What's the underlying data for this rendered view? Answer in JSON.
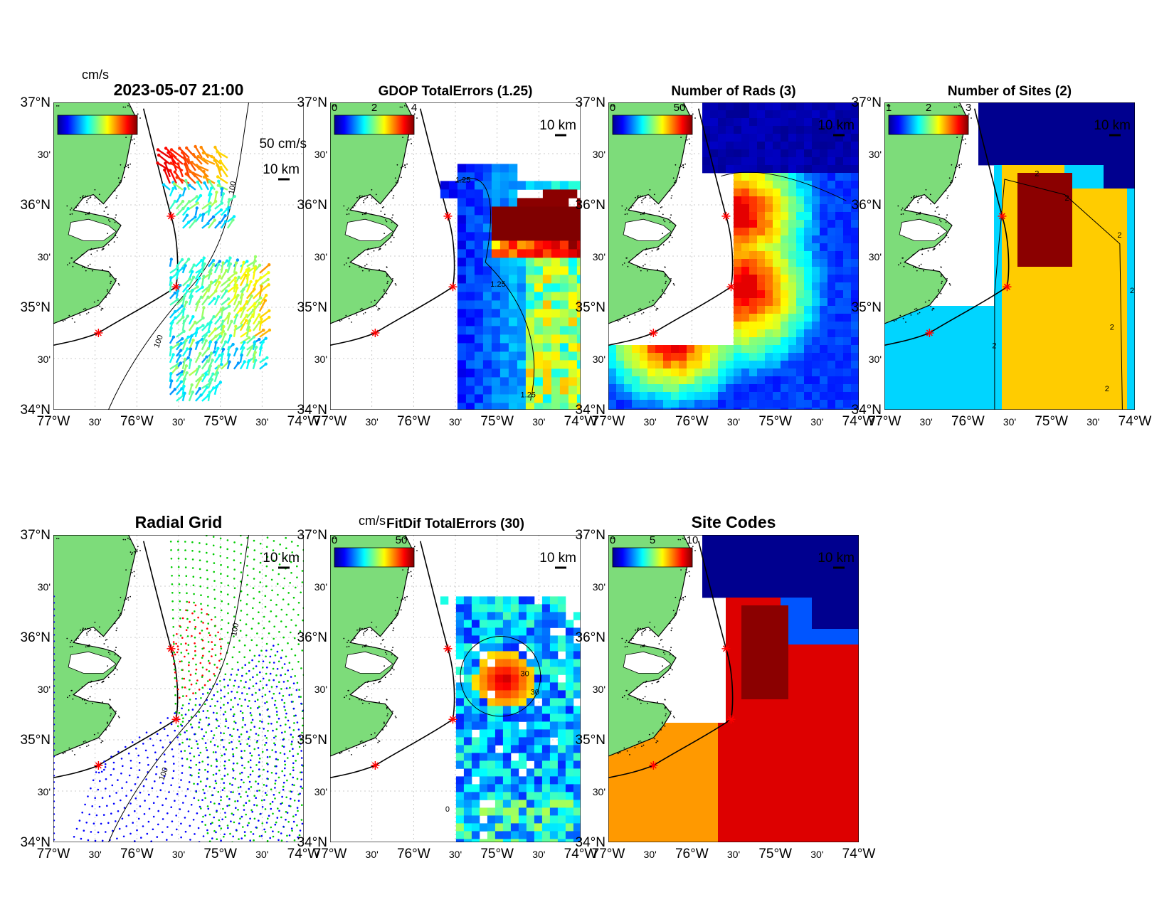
{
  "figure": {
    "timestamp": "2023-05-07 21:00",
    "lon_ticks": [
      "77°W",
      "30'",
      "76°W",
      "30'",
      "75°W",
      "30'",
      "74°W"
    ],
    "lat_ticks": [
      "37°N",
      "30'",
      "36°N",
      "30'",
      "35°N",
      "30'",
      "34°N"
    ],
    "scale_bar_label": "10 km",
    "land_color": "#7ddc7a",
    "site_marker_color": "#ff0000"
  },
  "panels": [
    {
      "id": "totals",
      "title": "2023-05-07 21:00",
      "colorbar_unit": "cm/s",
      "reference_vector_label": "50 cm/s",
      "contour_labels": [
        "100",
        "100"
      ],
      "colormap": "jet"
    },
    {
      "id": "gdop",
      "title": "GDOP TotalErrors (1.25)",
      "colorbar_ticks": [
        "0",
        "2",
        "4"
      ],
      "contour_labels": [
        "1.25",
        "1.25",
        "1.25"
      ],
      "colormap": "jet"
    },
    {
      "id": "nrads",
      "title": "Number of Rads (3)",
      "colorbar_ticks": [
        "0",
        "50"
      ],
      "colormap": "jet"
    },
    {
      "id": "nsites",
      "title": "Number of Sites (2)",
      "colorbar_ticks": [
        "1",
        "2",
        "3"
      ],
      "contour_labels": [
        "2",
        "2",
        "2",
        "2",
        "2",
        "2",
        "2"
      ],
      "colormap": "jet"
    },
    {
      "id": "radgrid",
      "title": "Radial Grid",
      "contour_labels": [
        "100",
        "100"
      ],
      "site_colors": [
        "#ff0000",
        "#00cc00",
        "#0000ff"
      ]
    },
    {
      "id": "fitdif",
      "title": "FitDif TotalErrors (30)",
      "colorbar_unit": "cm/s",
      "colorbar_ticks": [
        "0",
        "50"
      ],
      "contour_labels": [
        "30",
        "30",
        "0"
      ],
      "colormap": "jet"
    },
    {
      "id": "sitecodes",
      "title": "Site Codes",
      "colorbar_ticks": [
        "0",
        "5",
        "10"
      ],
      "colormap": "jet"
    }
  ]
}
